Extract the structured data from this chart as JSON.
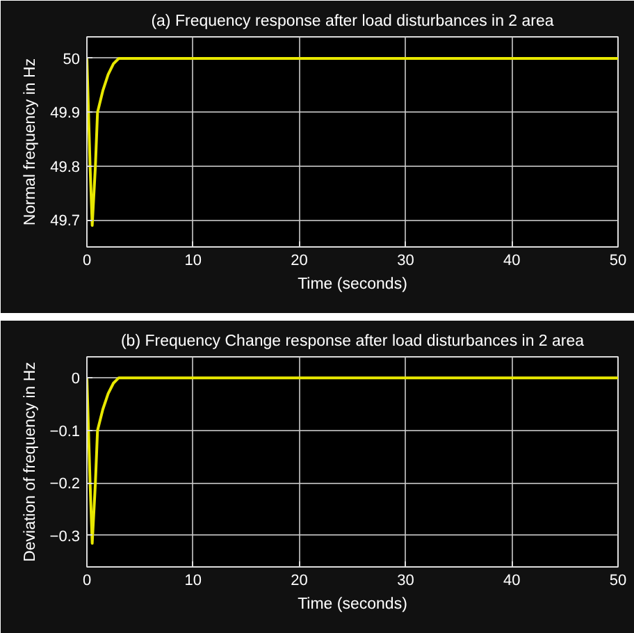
{
  "chart_data": [
    {
      "type": "line",
      "title": "(a) Frequency response after load disturbances in 2 area",
      "xlabel": "Time (seconds)",
      "ylabel": "Normal frequency in Hz",
      "x": [
        0,
        0.3,
        0.5,
        0.8,
        1.0,
        1.5,
        2,
        2.5,
        3,
        4,
        50
      ],
      "series": [
        {
          "color": "#e8e800",
          "values": [
            50,
            49.8,
            49.69,
            49.8,
            49.9,
            49.94,
            49.97,
            49.99,
            50.0,
            50.0,
            50.0
          ]
        }
      ],
      "xlim": [
        0,
        50
      ],
      "xticks": [
        0,
        10,
        20,
        30,
        40,
        50
      ],
      "ylim": [
        49.65,
        50.04
      ],
      "yticks": [
        49.7,
        49.8,
        49.9,
        50
      ],
      "grid": true
    },
    {
      "type": "line",
      "title": "(b) Frequency Change response after load disturbances in 2 area",
      "xlabel": "Time (seconds)",
      "ylabel": "Deviation of frequency in Hz",
      "x": [
        0,
        0.3,
        0.5,
        0.8,
        1.0,
        1.5,
        2,
        2.5,
        3,
        4,
        50
      ],
      "series": [
        {
          "color": "#e8e800",
          "values": [
            0,
            -0.2,
            -0.315,
            -0.2,
            -0.1,
            -0.06,
            -0.03,
            -0.01,
            0,
            0,
            0
          ]
        }
      ],
      "xlim": [
        0,
        50
      ],
      "xticks": [
        0,
        10,
        20,
        30,
        40,
        50
      ],
      "ylim": [
        -0.36,
        0.04
      ],
      "yticks": [
        -0.3,
        -0.2,
        -0.1,
        0
      ],
      "grid": true
    }
  ]
}
